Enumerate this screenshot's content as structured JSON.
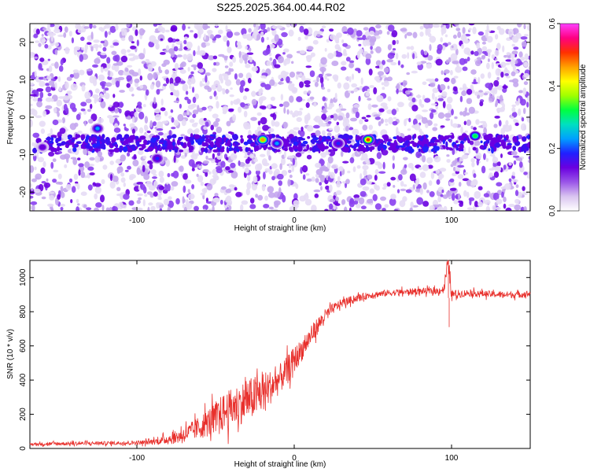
{
  "figure_title": "S225.2025.364.00.44.R02",
  "chart_data": [
    {
      "type": "heatmap",
      "title": "",
      "xlabel": "Height of straight line (km)",
      "ylabel": "Frequency (Hz)",
      "xlim": [
        -168,
        150
      ],
      "ylim": [
        -25,
        25
      ],
      "xticks": [
        -100,
        0,
        100
      ],
      "yticks": [
        -20,
        -10,
        0,
        10,
        20
      ],
      "xtick_labels": [
        "-100",
        "0",
        "100"
      ],
      "ytick_labels": [
        "-20",
        "-10",
        "0",
        "10",
        "20"
      ],
      "colorbar": {
        "label": "Normalized spectral amplitude",
        "range": [
          0.0,
          0.6
        ],
        "ticks": [
          0.0,
          0.2,
          0.4,
          0.6
        ],
        "tick_labels": [
          "0.0",
          "0.2",
          "0.4",
          "0.6"
        ],
        "colors": [
          "#ffffff",
          "#d9c4f0",
          "#9a55e8",
          "#6a00e0",
          "#2020ff",
          "#00a0ff",
          "#00e0c0",
          "#00ff40",
          "#a0ff00",
          "#ffff00",
          "#ffa000",
          "#ff3000",
          "#ff0080",
          "#ff40ff"
        ]
      },
      "features": {
        "horizontal_band_frequency_hz": -7,
        "band_start_km": -165,
        "band_end_km": 150,
        "hotspots": [
          {
            "x": -125,
            "y": -3,
            "value": 0.22
          },
          {
            "x": -87,
            "y": -11,
            "value": 0.2
          },
          {
            "x": -20,
            "y": -6,
            "value": 0.45
          },
          {
            "x": -11,
            "y": -7,
            "value": 0.25
          },
          {
            "x": 28,
            "y": -7,
            "value": 0.2
          },
          {
            "x": 47,
            "y": -6,
            "value": 0.5
          },
          {
            "x": 115,
            "y": -5,
            "value": 0.32
          },
          {
            "x": -160,
            "y": -8,
            "value": 0.15
          }
        ]
      }
    },
    {
      "type": "line",
      "title": "",
      "xlabel": "Height of straight line (km)",
      "ylabel": "SNR (10 * v/v)",
      "xlim": [
        -168,
        150
      ],
      "ylim": [
        0,
        1100
      ],
      "xticks": [
        -100,
        0,
        100
      ],
      "yticks": [
        0,
        200,
        400,
        600,
        800,
        1000
      ],
      "xtick_labels": [
        "-100",
        "0",
        "100"
      ],
      "ytick_labels": [
        "0",
        "200",
        "400",
        "600",
        "800",
        "1000"
      ],
      "series": [
        {
          "color": "#e8302c",
          "x": [
            -168,
            -150,
            -130,
            -110,
            -95,
            -85,
            -75,
            -65,
            -55,
            -45,
            -35,
            -25,
            -20,
            -15,
            -10,
            -5,
            0,
            5,
            10,
            15,
            20,
            25,
            30,
            40,
            50,
            60,
            70,
            80,
            90,
            95,
            98,
            100,
            110,
            120,
            130,
            140,
            150
          ],
          "y": [
            25,
            28,
            30,
            32,
            35,
            45,
            65,
            100,
            150,
            210,
            260,
            300,
            330,
            360,
            400,
            450,
            520,
            580,
            650,
            720,
            780,
            820,
            850,
            880,
            900,
            910,
            915,
            920,
            920,
            930,
            1100,
            900,
            910,
            905,
            900,
            900,
            905
          ],
          "noise_amplitude": [
            15,
            20,
            20,
            20,
            25,
            40,
            70,
            100,
            150,
            200,
            220,
            230,
            220,
            180,
            160,
            150,
            140,
            120,
            110,
            90,
            70,
            55,
            45,
            40,
            35,
            35,
            35,
            35,
            35,
            40,
            150,
            50,
            35,
            35,
            35,
            35,
            35
          ]
        }
      ],
      "annotations": [
        {
          "x": 98,
          "y": 1100,
          "text": ""
        },
        {
          "x": 98,
          "y": 710,
          "text": ""
        }
      ]
    }
  ]
}
